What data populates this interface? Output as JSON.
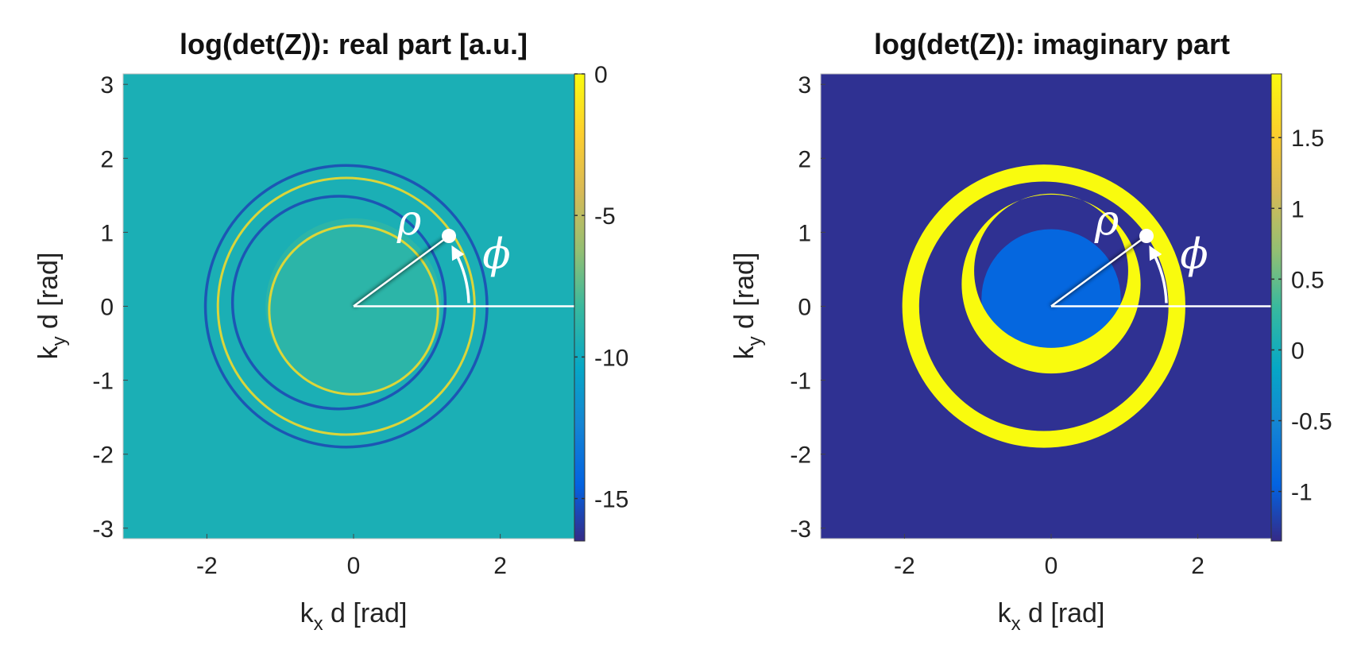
{
  "chart_data": [
    {
      "type": "heatmap",
      "title": "log(det(Z)): real part [a.u.]",
      "xlabel": "k_x d [rad]",
      "ylabel": "k_y d [rad]",
      "xlim": [
        -3.1416,
        3.1416
      ],
      "ylim": [
        -3.1416,
        3.1416
      ],
      "x_ticks": [
        -2,
        0,
        2
      ],
      "x_tick_labels": [
        "-2",
        "0",
        "2"
      ],
      "y_ticks": [
        -3,
        -2,
        -1,
        0,
        1,
        2,
        3
      ],
      "y_tick_labels": [
        "-3",
        "-2",
        "-1",
        "0",
        "1",
        "2",
        "3"
      ],
      "colorbar": {
        "clim": [
          -16.5,
          0
        ],
        "ticks": [
          0,
          -5,
          -10,
          -15
        ],
        "tick_labels": [
          "0",
          "-5",
          "-10",
          "-15"
        ],
        "colormap": "parula"
      },
      "background_value": -9.5,
      "inner_disk": {
        "radius": 1.2,
        "value": -8.2
      },
      "rings": [
        {
          "cx": 0.0,
          "cy": -0.05,
          "r": 1.15,
          "value": -1.5,
          "kind": "peak"
        },
        {
          "cx": -0.2,
          "cy": 0.05,
          "r": 1.45,
          "value": -15.5,
          "kind": "dip"
        },
        {
          "cx": -0.1,
          "cy": 0.0,
          "r": 1.75,
          "value": -1.5,
          "kind": "peak"
        },
        {
          "cx": -0.1,
          "cy": 0.0,
          "r": 1.92,
          "value": -15.5,
          "kind": "dip"
        }
      ],
      "annotation": {
        "rho_label": "ρ",
        "phi_label": "ϕ",
        "rho_end": [
          1.3,
          0.95
        ]
      }
    },
    {
      "type": "heatmap",
      "title": "log(det(Z)): imaginary part",
      "xlabel": "k_x d [rad]",
      "ylabel": "k_y d [rad]",
      "xlim": [
        -3.1416,
        3.1416
      ],
      "ylim": [
        -3.1416,
        3.1416
      ],
      "x_ticks": [
        -2,
        0,
        2
      ],
      "x_tick_labels": [
        "-2",
        "0",
        "2"
      ],
      "y_ticks": [
        -3,
        -2,
        -1,
        0,
        1,
        2,
        3
      ],
      "y_tick_labels": [
        "-3",
        "-2",
        "-1",
        "0",
        "1",
        "2",
        "3"
      ],
      "colorbar": {
        "clim": [
          -1.35,
          1.95
        ],
        "ticks": [
          1.5,
          1,
          0.5,
          0,
          -0.5,
          -1
        ],
        "tick_labels": [
          "1.5",
          "1",
          "0.5",
          "0",
          "-0.5",
          "-1"
        ],
        "colormap": "parula"
      },
      "background_value": -1.3,
      "inner_disk": {
        "cx": 0.0,
        "cy": 0.1,
        "radius": 0.95,
        "value": -0.9
      },
      "bands": [
        {
          "cx": -0.1,
          "cy": 0.0,
          "r_in": 1.7,
          "r_out": 1.93,
          "value": 1.95
        },
        {
          "outer": {
            "cx": 0.0,
            "cy": 0.3,
            "r": 1.22
          },
          "hole": {
            "cx": 0.0,
            "cy": 0.48,
            "r": 1.05
          },
          "value": 1.95
        }
      ],
      "annotation": {
        "rho_label": "ρ",
        "phi_label": "ϕ",
        "rho_end": [
          1.3,
          0.95
        ]
      }
    }
  ]
}
